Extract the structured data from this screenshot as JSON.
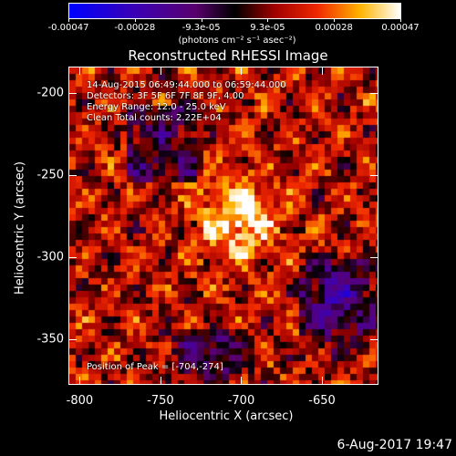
{
  "colorbar": {
    "tick_labels": [
      "-0.00047",
      "-0.00028",
      "-9.3e-05",
      "9.3e-05",
      "0.00028",
      "0.00047"
    ],
    "units": "(photons cm⁻² s⁻¹ asec⁻²)",
    "range": [
      -0.00047,
      0.00047
    ]
  },
  "chart_data": {
    "type": "heatmap",
    "title": "Reconstructed RHESSI Image",
    "xlabel": "Heliocentric X (arcsec)",
    "ylabel": "Heliocentric Y (arcsec)",
    "xlim": [
      -807,
      -615
    ],
    "ylim": [
      -378,
      -184
    ],
    "x_ticks": [
      "-800",
      "-750",
      "-700",
      "-650"
    ],
    "y_ticks": [
      "-200",
      "-250",
      "-300",
      "-350"
    ],
    "x_tick_values": [
      -800,
      -750,
      -700,
      -650
    ],
    "y_tick_values": [
      -200,
      -250,
      -300,
      -350
    ],
    "peak": [
      -704,
      -274
    ],
    "grid": false
  },
  "annotations": {
    "time_range": "14-Aug-2015 06:49:44.000 to 06:59:44.000",
    "detectors": "Detectors: 3F 5F 6F 7F 8F 9F, 4.00",
    "energy": "Energy Range: 12.0 - 25.0 keV",
    "clean": "Clean     Total counts: 2.22E+04",
    "peak_label": "Position of Peak = [-704,-274]"
  },
  "footer": {
    "timestamp": "6-Aug-2017 19:47"
  }
}
